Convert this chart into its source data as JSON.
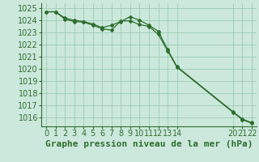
{
  "title": "Graphe pression niveau de la mer (hPa)",
  "background_color": "#cce8dc",
  "grid_color": "#99ccb3",
  "line_color": "#2d6e2d",
  "marker_color": "#2d6e2d",
  "xlim": [
    -0.5,
    22.5
  ],
  "ylim": [
    1015.3,
    1025.4
  ],
  "xticks": [
    0,
    1,
    2,
    3,
    4,
    5,
    6,
    7,
    8,
    9,
    10,
    11,
    12,
    13,
    14,
    20,
    21,
    22
  ],
  "yticks": [
    1016,
    1017,
    1018,
    1019,
    1020,
    1021,
    1022,
    1023,
    1024,
    1025
  ],
  "series1_x": [
    0,
    1,
    2,
    3,
    4,
    5,
    6,
    7,
    8,
    9,
    10,
    11,
    12,
    13,
    14,
    20,
    21,
    22
  ],
  "series1_y": [
    1024.7,
    1024.7,
    1024.2,
    1024.0,
    1023.9,
    1023.7,
    1023.4,
    1023.6,
    1023.9,
    1024.3,
    1024.0,
    1023.6,
    1023.1,
    1021.6,
    1020.2,
    1016.5,
    1015.9,
    1015.6
  ],
  "series2_x": [
    0,
    1,
    2,
    3,
    4,
    5,
    6,
    7,
    8,
    9,
    10,
    11,
    12,
    13,
    14,
    20,
    21,
    22
  ],
  "series2_y": [
    1024.7,
    1024.7,
    1024.1,
    1023.9,
    1023.85,
    1023.6,
    1023.3,
    1023.2,
    1023.95,
    1023.95,
    1023.65,
    1023.5,
    1022.85,
    1021.5,
    1020.15,
    1016.45,
    1015.85,
    1015.55
  ],
  "tick_fontsize": 7,
  "xlabel_fontsize": 8
}
